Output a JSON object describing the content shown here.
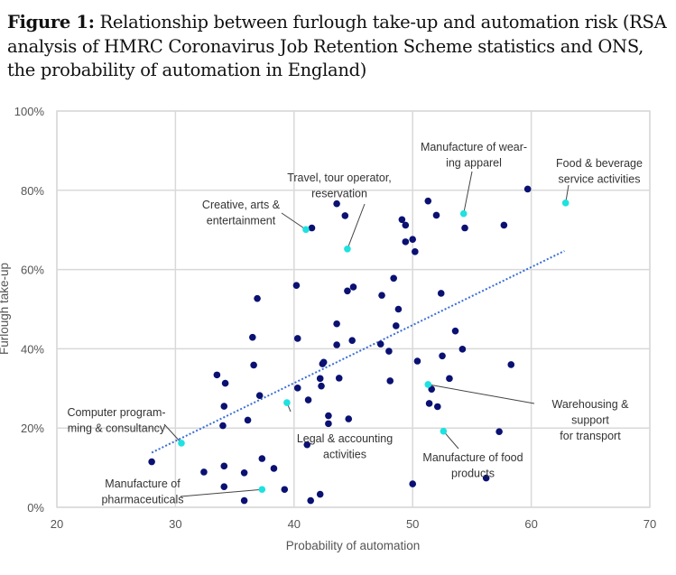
{
  "title": {
    "prefix": "Figure 1:",
    "text": "Relationship between furlough take-up and automation risk (RSA analysis of HMRC Coronavirus Job Retention Scheme statistics and ONS, the probability of automation in England)"
  },
  "chart_data": {
    "type": "scatter",
    "xlabel": "Probability of automation",
    "ylabel": "Furlough take-up",
    "xlim": [
      20,
      70
    ],
    "ylim": [
      0,
      100
    ],
    "x_ticks": [
      "20",
      "30",
      "40",
      "50",
      "60",
      "70"
    ],
    "y_ticks": [
      "0%",
      "20%",
      "40%",
      "60%",
      "80%",
      "100%"
    ],
    "grid": true,
    "colors": {
      "point": "#0a1172",
      "highlight": "#1de2e0",
      "trend": "#3b6fd4",
      "grid": "#d9d9d9"
    },
    "trendline": {
      "style": "dotted",
      "x": [
        28.0,
        62.8
      ],
      "y": [
        13.8,
        64.7
      ]
    },
    "points": [
      [
        59.7,
        80.3
      ],
      [
        51.3,
        77.3
      ],
      [
        52.0,
        73.7
      ],
      [
        49.1,
        72.6
      ],
      [
        49.4,
        71.2
      ],
      [
        54.4,
        70.5
      ],
      [
        57.7,
        71.2
      ],
      [
        49.4,
        67.0
      ],
      [
        50.0,
        67.6
      ],
      [
        50.2,
        64.5
      ],
      [
        48.4,
        57.8
      ],
      [
        45.0,
        55.6
      ],
      [
        47.4,
        53.5
      ],
      [
        52.4,
        54.0
      ],
      [
        48.8,
        50.0
      ],
      [
        48.6,
        45.8
      ],
      [
        53.6,
        44.5
      ],
      [
        43.6,
        76.6
      ],
      [
        44.3,
        73.6
      ],
      [
        41.5,
        70.5
      ],
      [
        40.2,
        56.0
      ],
      [
        36.9,
        52.7
      ],
      [
        44.5,
        54.6
      ],
      [
        43.6,
        46.3
      ],
      [
        36.5,
        42.9
      ],
      [
        40.3,
        42.6
      ],
      [
        44.9,
        42.1
      ],
      [
        43.6,
        41.0
      ],
      [
        36.6,
        35.9
      ],
      [
        42.4,
        36.2
      ],
      [
        42.5,
        36.6
      ],
      [
        33.5,
        33.4
      ],
      [
        34.2,
        31.3
      ],
      [
        42.2,
        32.5
      ],
      [
        43.8,
        32.6
      ],
      [
        42.3,
        30.6
      ],
      [
        40.3,
        30.1
      ],
      [
        37.1,
        28.2
      ],
      [
        41.2,
        27.1
      ],
      [
        34.1,
        25.5
      ],
      [
        42.9,
        23.1
      ],
      [
        44.6,
        22.3
      ],
      [
        42.9,
        21.1
      ],
      [
        36.1,
        22.0
      ],
      [
        34.0,
        20.6
      ],
      [
        41.1,
        15.8
      ],
      [
        28.0,
        11.5
      ],
      [
        37.3,
        12.3
      ],
      [
        34.1,
        10.4
      ],
      [
        38.3,
        9.8
      ],
      [
        32.4,
        8.9
      ],
      [
        35.8,
        8.7
      ],
      [
        34.1,
        5.2
      ],
      [
        39.2,
        4.5
      ],
      [
        42.2,
        3.3
      ],
      [
        35.8,
        1.7
      ],
      [
        41.4,
        1.7
      ],
      [
        47.3,
        41.2
      ],
      [
        48.0,
        39.4
      ],
      [
        54.2,
        39.9
      ],
      [
        50.4,
        36.9
      ],
      [
        52.5,
        38.2
      ],
      [
        58.3,
        36.0
      ],
      [
        48.1,
        31.9
      ],
      [
        53.1,
        32.5
      ],
      [
        51.6,
        29.8
      ],
      [
        51.4,
        26.2
      ],
      [
        52.1,
        25.4
      ],
      [
        57.3,
        19.1
      ],
      [
        56.2,
        7.4
      ],
      [
        50.0,
        5.9
      ]
    ],
    "highlighted": [
      {
        "label": [
          "Manufacture of wear-",
          "ing apparel"
        ],
        "x": 54.3,
        "y": 74.1
      },
      {
        "label": [
          "Food & beverage",
          "service activities"
        ],
        "x": 62.9,
        "y": 76.8
      },
      {
        "label": [
          "Travel, tour operator,",
          "reservation"
        ],
        "x": 44.5,
        "y": 65.2
      },
      {
        "label": [
          "Creative, arts &",
          "entertainment"
        ],
        "x": 41.0,
        "y": 70.1
      },
      {
        "label": [
          "Computer program-",
          "ming & consultancy"
        ],
        "x": 30.5,
        "y": 16.2
      },
      {
        "label": [
          "Legal & accounting",
          "activities"
        ],
        "x": 39.4,
        "y": 26.4
      },
      {
        "label": [
          "Manufacture of",
          "pharmaceuticals"
        ],
        "x": 37.3,
        "y": 4.5
      },
      {
        "label": [
          "Warehousing &",
          "support",
          "for transport"
        ],
        "x": 51.3,
        "y": 31.0
      },
      {
        "label": [
          "Manufacture of food",
          "products"
        ],
        "x": 52.6,
        "y": 19.2
      }
    ]
  }
}
